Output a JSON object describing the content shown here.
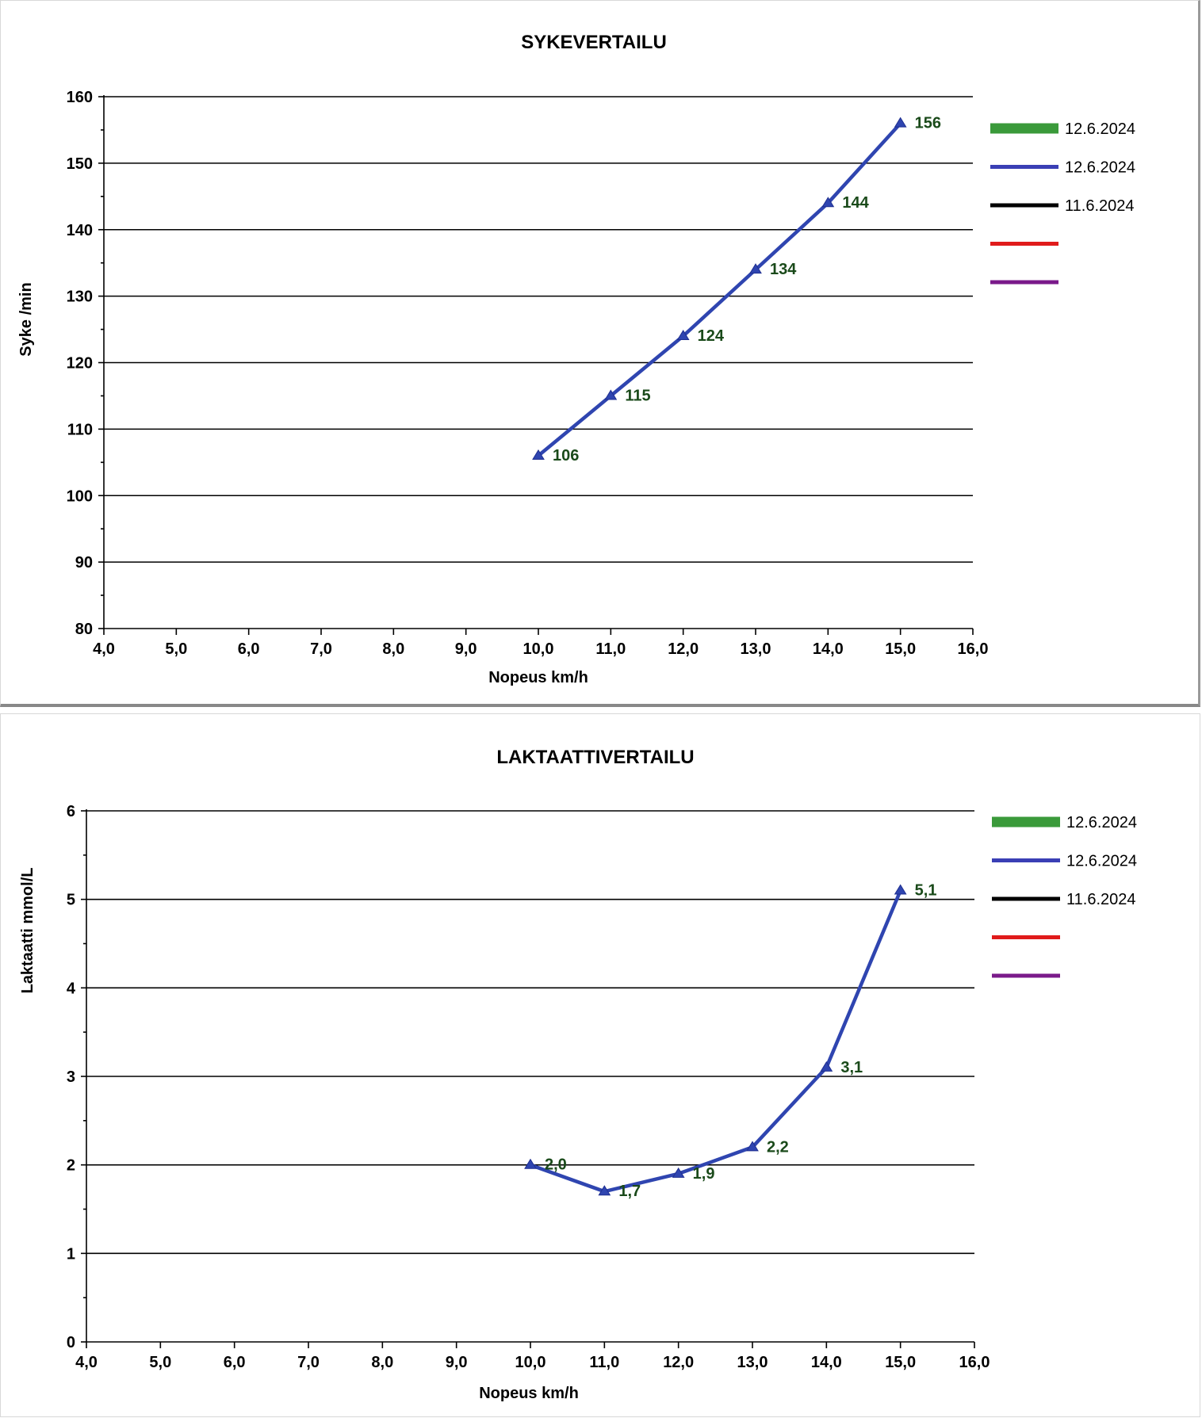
{
  "chart_data": [
    {
      "type": "line",
      "title": "SYKEVERTAILU",
      "xlabel": "Nopeus km/h",
      "ylabel": "Syke /min",
      "xlim": [
        4.0,
        16.0
      ],
      "ylim": [
        80,
        160
      ],
      "xticks": [
        "4,0",
        "5,0",
        "6,0",
        "7,0",
        "8,0",
        "9,0",
        "10,0",
        "11,0",
        "12,0",
        "13,0",
        "14,0",
        "15,0",
        "16,0"
      ],
      "yticks": [
        "80",
        "90",
        "100",
        "110",
        "120",
        "130",
        "140",
        "150",
        "160"
      ],
      "grid": true,
      "legend_position": "right",
      "legend": [
        {
          "label": "12.6.2024",
          "color": "#3a9a3a"
        },
        {
          "label": "12.6.2024",
          "color": "#3a3fb5"
        },
        {
          "label": "11.6.2024",
          "color": "#000000"
        },
        {
          "label": "",
          "color": "#e01b1b"
        },
        {
          "label": "",
          "color": "#7a1a8a"
        }
      ],
      "series": [
        {
          "name": "12.6.2024",
          "color": "#2f45b0",
          "marker": "triangle",
          "x": [
            10,
            11,
            12,
            13,
            14,
            15
          ],
          "y": [
            106,
            115,
            124,
            134,
            144,
            156
          ],
          "labels": [
            "106",
            "115",
            "124",
            "134",
            "144",
            "156"
          ]
        }
      ]
    },
    {
      "type": "line",
      "title": "LAKTAATTIVERTAILU",
      "xlabel": "Nopeus km/h",
      "ylabel": "Laktaatti mmol/L",
      "xlim": [
        4.0,
        16.0
      ],
      "ylim": [
        0,
        6
      ],
      "xticks": [
        "4,0",
        "5,0",
        "6,0",
        "7,0",
        "8,0",
        "9,0",
        "10,0",
        "11,0",
        "12,0",
        "13,0",
        "14,0",
        "15,0",
        "16,0"
      ],
      "yticks": [
        "0",
        "1",
        "2",
        "3",
        "4",
        "5",
        "6"
      ],
      "grid": true,
      "legend_position": "right",
      "legend": [
        {
          "label": "12.6.2024",
          "color": "#3a9a3a"
        },
        {
          "label": "12.6.2024",
          "color": "#3a3fb5"
        },
        {
          "label": "11.6.2024",
          "color": "#000000"
        },
        {
          "label": "",
          "color": "#e01b1b"
        },
        {
          "label": "",
          "color": "#7a1a8a"
        }
      ],
      "series": [
        {
          "name": "12.6.2024",
          "color": "#2f45b0",
          "marker": "triangle",
          "x": [
            10,
            11,
            12,
            13,
            14,
            15
          ],
          "y": [
            2.0,
            1.7,
            1.9,
            2.2,
            3.1,
            5.1
          ],
          "labels": [
            "2,0",
            "1,7",
            "1,9",
            "2,2",
            "3,1",
            "5,1"
          ]
        }
      ]
    }
  ]
}
